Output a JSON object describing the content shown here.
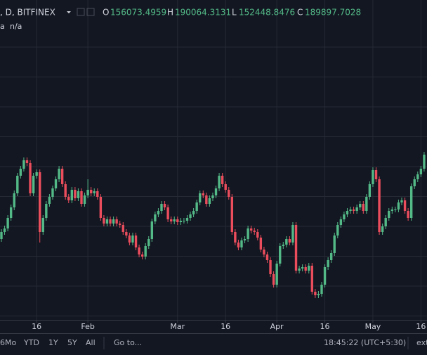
{
  "header": {
    "symbol": ", D, BITFINEX",
    "o_label": "O",
    "open": "156073.4959",
    "h_label": "H",
    "high": "190064.3131",
    "l_label": "L",
    "low": "152448.8476",
    "c_label": "C",
    "close": "189897.7028",
    "indicator": "a",
    "indicator_value": "n/a"
  },
  "chart_data": {
    "type": "candlestick",
    "up_color": "#53b987",
    "down_color": "#eb4d5c",
    "ylim": [
      0,
      455
    ],
    "xticks": [
      {
        "value": 11,
        "label": "16"
      },
      {
        "value": 27,
        "label": "Feb"
      },
      {
        "value": 55,
        "label": "Mar"
      },
      {
        "value": 70,
        "label": "16"
      },
      {
        "value": 86,
        "label": "Apr"
      },
      {
        "value": 101,
        "label": "16"
      },
      {
        "value": 116,
        "label": "May"
      },
      {
        "value": 131,
        "label": "16"
      }
    ],
    "open": [
      115,
      125,
      130,
      145,
      160,
      180,
      205,
      215,
      227,
      223,
      180,
      205,
      210,
      125,
      145,
      165,
      175,
      187,
      200,
      215,
      193,
      175,
      170,
      185,
      173,
      183,
      165,
      177,
      185,
      180,
      183,
      175,
      145,
      137,
      143,
      137,
      143,
      137,
      135,
      125,
      120,
      110,
      120,
      103,
      93,
      90,
      105,
      115,
      140,
      150,
      155,
      165,
      160,
      143,
      140,
      143,
      139,
      141,
      141,
      145,
      150,
      155,
      167,
      180,
      177,
      165,
      173,
      177,
      187,
      205,
      193,
      185,
      175,
      125,
      110,
      103,
      113,
      115,
      130,
      127,
      125,
      117,
      100,
      93,
      85,
      65,
      50,
      80,
      105,
      107,
      115,
      110,
      135,
      70,
      73,
      75,
      70,
      77,
      40,
      35,
      37,
      50,
      75,
      85,
      95,
      120,
      135,
      143,
      150,
      155,
      157,
      155,
      160,
      165,
      155,
      175,
      193,
      213,
      200,
      125,
      133,
      145,
      155,
      157,
      157,
      167,
      170,
      155,
      145,
      190,
      200,
      207,
      215
    ],
    "high": [
      129,
      134,
      149,
      164,
      184,
      209,
      219,
      231,
      231,
      227,
      209,
      214,
      214,
      149,
      169,
      179,
      191,
      204,
      219,
      219,
      197,
      179,
      189,
      189,
      187,
      187,
      181,
      200,
      189,
      187,
      187,
      179,
      149,
      147,
      147,
      147,
      147,
      141,
      139,
      129,
      124,
      124,
      124,
      107,
      97,
      109,
      119,
      144,
      154,
      159,
      169,
      169,
      164,
      147,
      147,
      147,
      145,
      145,
      149,
      154,
      159,
      171,
      184,
      184,
      181,
      177,
      181,
      191,
      209,
      209,
      197,
      189,
      179,
      129,
      114,
      117,
      119,
      134,
      134,
      131,
      129,
      121,
      104,
      97,
      89,
      69,
      84,
      109,
      111,
      119,
      119,
      139,
      139,
      77,
      79,
      79,
      81,
      81,
      44,
      41,
      54,
      79,
      89,
      99,
      124,
      139,
      147,
      154,
      159,
      161,
      161,
      164,
      169,
      169,
      179,
      197,
      217,
      217,
      204,
      137,
      149,
      159,
      161,
      161,
      171,
      174,
      174,
      159,
      194,
      204,
      211,
      219,
      239
    ],
    "low": [
      111,
      121,
      126,
      141,
      156,
      176,
      201,
      211,
      219,
      176,
      176,
      201,
      110,
      121,
      141,
      161,
      171,
      183,
      196,
      189,
      171,
      166,
      166,
      169,
      169,
      161,
      161,
      173,
      176,
      176,
      171,
      141,
      133,
      133,
      133,
      133,
      133,
      131,
      121,
      116,
      106,
      106,
      99,
      89,
      86,
      86,
      101,
      111,
      136,
      146,
      151,
      156,
      139,
      136,
      136,
      135,
      135,
      137,
      137,
      141,
      146,
      151,
      163,
      173,
      161,
      161,
      169,
      173,
      183,
      189,
      181,
      171,
      121,
      106,
      99,
      99,
      109,
      111,
      123,
      121,
      113,
      96,
      89,
      81,
      61,
      46,
      46,
      76,
      101,
      103,
      106,
      106,
      66,
      66,
      69,
      66,
      66,
      36,
      31,
      31,
      33,
      46,
      71,
      81,
      91,
      116,
      131,
      139,
      146,
      151,
      151,
      151,
      156,
      151,
      151,
      171,
      189,
      196,
      121,
      121,
      129,
      141,
      151,
      153,
      153,
      163,
      151,
      141,
      141,
      186,
      196,
      203,
      211
    ],
    "close": [
      125,
      130,
      145,
      160,
      180,
      205,
      215,
      227,
      223,
      180,
      205,
      210,
      125,
      145,
      165,
      175,
      187,
      200,
      215,
      193,
      175,
      170,
      185,
      173,
      183,
      165,
      177,
      185,
      180,
      183,
      175,
      145,
      137,
      143,
      137,
      143,
      137,
      135,
      125,
      120,
      110,
      120,
      103,
      93,
      90,
      105,
      115,
      140,
      150,
      155,
      165,
      160,
      143,
      140,
      143,
      139,
      141,
      141,
      145,
      150,
      155,
      167,
      180,
      177,
      165,
      173,
      177,
      187,
      205,
      193,
      185,
      175,
      125,
      110,
      103,
      113,
      115,
      130,
      127,
      125,
      117,
      100,
      93,
      85,
      65,
      50,
      80,
      105,
      107,
      115,
      110,
      135,
      70,
      73,
      75,
      70,
      77,
      40,
      35,
      37,
      50,
      75,
      85,
      95,
      120,
      135,
      143,
      150,
      155,
      157,
      155,
      160,
      165,
      155,
      175,
      193,
      213,
      200,
      125,
      133,
      145,
      155,
      157,
      157,
      167,
      170,
      155,
      145,
      190,
      200,
      207,
      215,
      235
    ]
  },
  "toolbar": {
    "ranges": [
      "6Mo",
      "YTD",
      "1Y",
      "5Y",
      "All"
    ],
    "goto": "Go to...",
    "time": "18:45:22 (UTC+5:30)",
    "ext": "ext"
  }
}
